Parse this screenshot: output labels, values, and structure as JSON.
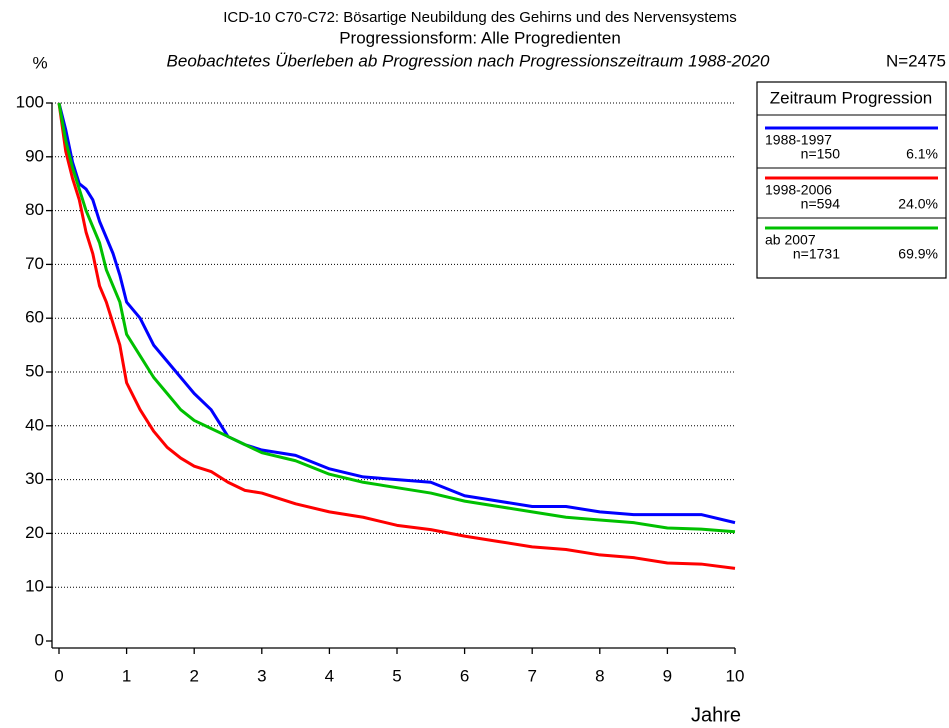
{
  "chart_data": {
    "type": "line",
    "title": "ICD-10 C70-C72: Bösartige Neubildung des Gehirns und des Nervensystems",
    "subtitle": "Progressionsform: Alle Progredienten",
    "subtitle2": "Beobachtetes Überleben ab Progression nach Progressionszeitraum 1988-2020",
    "total": "N=2475",
    "y_label": "%",
    "x_label": "Jahre",
    "legend_title": "Zeitraum Progression",
    "x": [
      0,
      0.1,
      0.2,
      0.3,
      0.4,
      0.5,
      0.6,
      0.7,
      0.8,
      0.9,
      1,
      1.2,
      1.4,
      1.6,
      1.8,
      2,
      2.25,
      2.5,
      2.75,
      3,
      3.5,
      4,
      4.5,
      5,
      5.5,
      6,
      6.5,
      7,
      7.5,
      8,
      8.5,
      9,
      9.5,
      10
    ],
    "series": [
      {
        "name": "1988-1997",
        "n": "n=150",
        "share": "6.1%",
        "color": "#0000ff",
        "values": [
          100,
          95,
          89,
          85,
          84,
          82,
          78,
          75,
          72,
          68,
          63,
          60,
          55,
          52,
          49,
          46,
          43,
          38,
          36.5,
          35.5,
          34.5,
          32,
          30.5,
          30,
          29.5,
          27,
          26,
          25,
          25,
          24,
          23.5,
          23.5,
          23.5,
          22
        ]
      },
      {
        "name": "1998-2006",
        "n": "n=594",
        "share": "24.0%",
        "color": "#ff0000",
        "values": [
          100,
          91,
          86,
          82,
          76,
          72,
          66,
          63,
          59,
          55,
          48,
          43,
          39,
          36,
          34,
          32.5,
          31.5,
          29.5,
          28,
          27.5,
          25.5,
          24,
          23,
          21.5,
          20.7,
          19.5,
          18.5,
          17.5,
          17,
          16,
          15.5,
          14.5,
          14.3,
          13.5
        ]
      },
      {
        "name": "ab 2007",
        "n": "n=1731",
        "share": "69.9%",
        "color": "#00c000",
        "values": [
          100,
          93,
          88,
          84,
          80,
          77,
          74,
          69,
          66,
          63,
          57,
          53,
          49,
          46,
          43,
          41,
          39.5,
          38,
          36.5,
          35,
          33.5,
          31,
          29.5,
          28.5,
          27.5,
          26,
          25,
          24,
          23,
          22.5,
          22,
          21,
          20.8,
          20.3
        ]
      }
    ],
    "xlim": [
      0,
      10
    ],
    "xticks": [
      0,
      1,
      2,
      3,
      4,
      5,
      6,
      7,
      8,
      9,
      10
    ],
    "ylim": [
      0,
      100
    ],
    "yticks": [
      0,
      10,
      20,
      30,
      40,
      50,
      60,
      70,
      80,
      90,
      100
    ],
    "grid": true
  }
}
